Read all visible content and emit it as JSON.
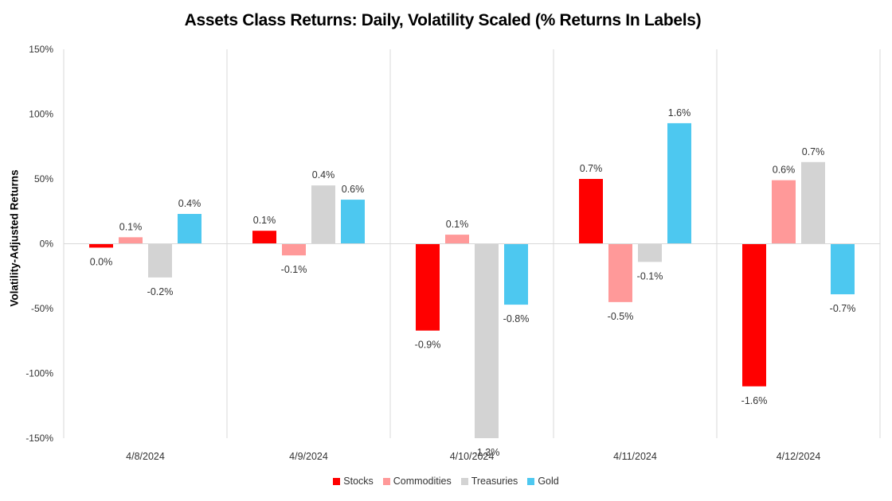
{
  "chart_data": {
    "type": "bar",
    "title": "Assets Class Returns: Daily, Volatility Scaled (% Returns In Labels)",
    "xlabel": "",
    "ylabel": "Volatility-Adjusted Returns",
    "ylim": [
      -150,
      150
    ],
    "yticks": [
      150,
      100,
      50,
      0,
      -50,
      -100,
      -150
    ],
    "ytick_labels": [
      "150%",
      "100%",
      "50%",
      "0%",
      "-50%",
      "-100%",
      "-150%"
    ],
    "categories": [
      "4/8/2024",
      "4/9/2024",
      "4/10/2024",
      "4/11/2024",
      "4/12/2024"
    ],
    "legend_position": "bottom",
    "grid": "vertical separators between categories",
    "series": [
      {
        "name": "Stocks",
        "color": "#ff0000",
        "values": [
          -3,
          10,
          -67,
          50,
          -110
        ],
        "labels": [
          "0.0%",
          "0.1%",
          "-0.9%",
          "0.7%",
          "-1.6%"
        ]
      },
      {
        "name": "Commodities",
        "color": "#ff9999",
        "values": [
          5,
          -9,
          7,
          -45,
          49
        ],
        "labels": [
          "0.1%",
          "-0.1%",
          "0.1%",
          "-0.5%",
          "0.6%"
        ]
      },
      {
        "name": "Treasuries",
        "color": "#d3d3d3",
        "values": [
          -26,
          45,
          -150,
          -14,
          63
        ],
        "labels": [
          "-0.2%",
          "0.4%",
          "-1.3%",
          "-0.1%",
          "0.7%"
        ]
      },
      {
        "name": "Gold",
        "color": "#4dc8f0",
        "values": [
          23,
          34,
          -47,
          93,
          -39
        ],
        "labels": [
          "0.4%",
          "0.6%",
          "-0.8%",
          "1.6%",
          "-0.7%"
        ]
      }
    ]
  }
}
